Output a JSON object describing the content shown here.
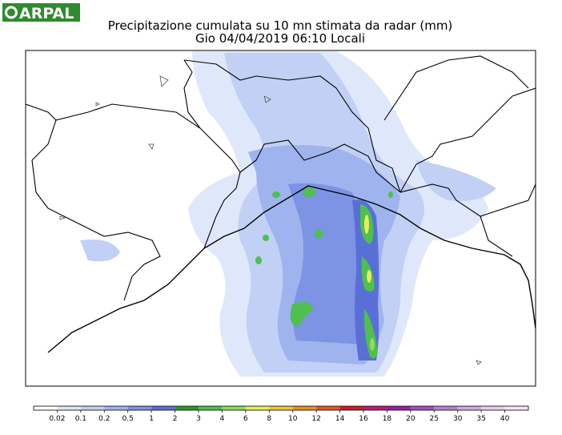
{
  "header": {
    "logo": "ARPAL",
    "title": "Precipitazione cumulata su 10 mn stimata da radar (mm)",
    "subtitle": "Gio 04/04/2019 06:10 Locali"
  },
  "colorbar": {
    "labels": [
      "0.02",
      "0.1",
      "0.2",
      "0.5",
      "1",
      "2",
      "3",
      "4",
      "6",
      "8",
      "10",
      "12",
      "14",
      "16",
      "18",
      "20",
      "25",
      "30",
      "35",
      "40"
    ],
    "colors": [
      "#ffffff",
      "#dfe8fa",
      "#c1d0f4",
      "#9fb3ee",
      "#7d93e4",
      "#5a6fd6",
      "#2c9a2c",
      "#4fbf4f",
      "#8fdc5f",
      "#e3ef5a",
      "#f1c43d",
      "#e8902a",
      "#db5a22",
      "#c8202c",
      "#b81e7a",
      "#9a1ea8",
      "#a050c0",
      "#bb80d0",
      "#d3a8e2",
      "#ecccf0",
      "#fbe4f4"
    ]
  }
}
